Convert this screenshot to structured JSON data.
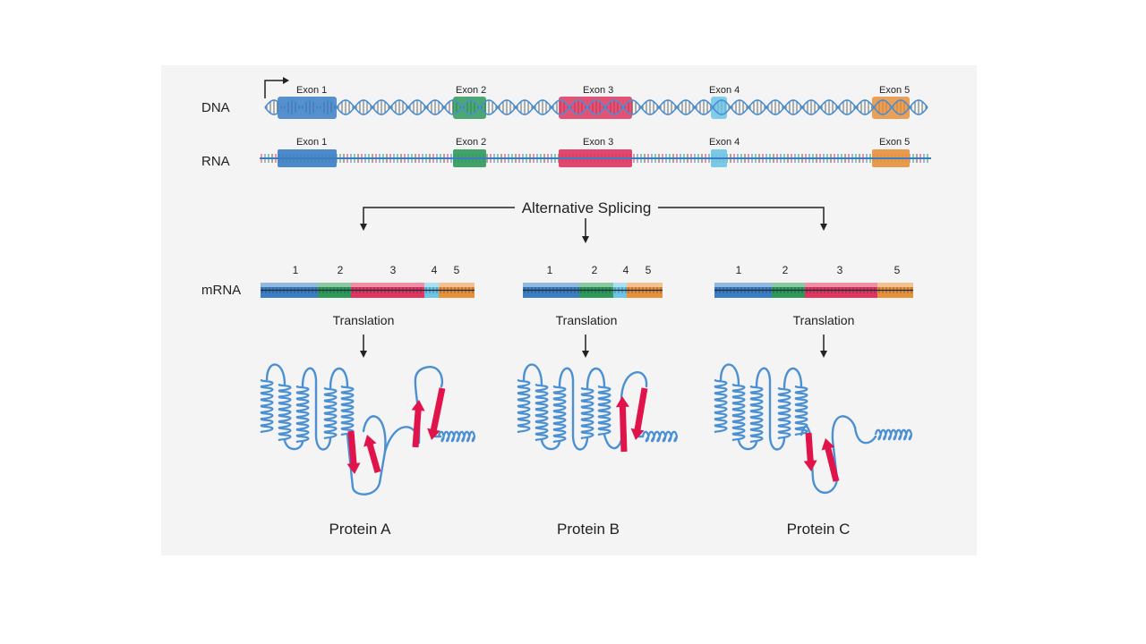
{
  "rows": {
    "dna": "DNA",
    "rna": "RNA",
    "mrna": "mRNA"
  },
  "exons": [
    {
      "label": "Exon  1",
      "color": "#3b7ec4"
    },
    {
      "label": "Exon 2",
      "color": "#2e9a5a"
    },
    {
      "label": "Exon  3",
      "color": "#e0355e"
    },
    {
      "label": "Exon 4",
      "color": "#6cc4e6"
    },
    {
      "label": "Exon 5",
      "color": "#e8913b"
    }
  ],
  "splicing_label": "Alternative Splicing",
  "isoforms": [
    {
      "exons": [
        "1",
        "2",
        "3",
        "4",
        "5"
      ],
      "translation": "Translation",
      "protein": "Protein A"
    },
    {
      "exons": [
        "1",
        "2",
        "4",
        "5"
      ],
      "translation": "Translation",
      "protein": "Protein B"
    },
    {
      "exons": [
        "1",
        "2",
        "3",
        "5"
      ],
      "translation": "Translation",
      "protein": "Protein C"
    }
  ],
  "colors": {
    "panel": "#f4f4f4",
    "helix": "#4a90d2",
    "strand": "#e0134b",
    "arrow": "#222222"
  }
}
